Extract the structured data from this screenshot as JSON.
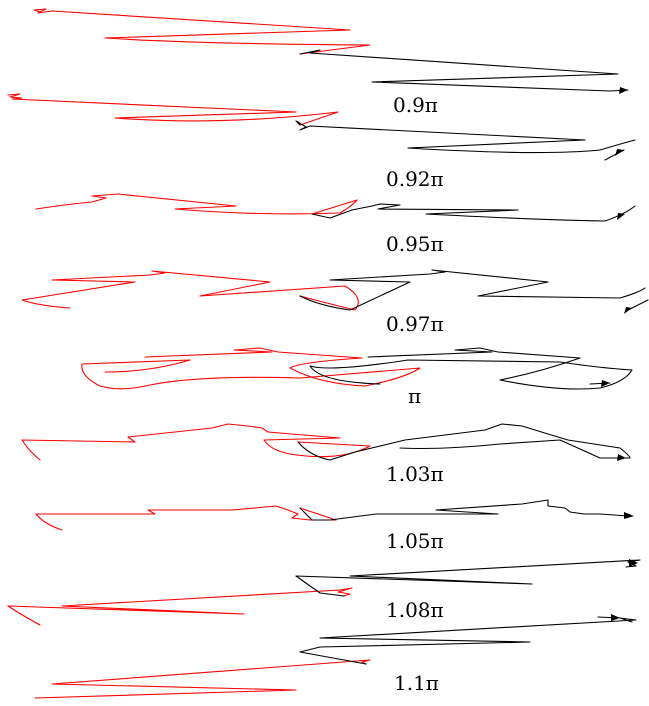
{
  "labels": [
    "0.9π",
    "0.92π",
    "0.95π",
    "0.97π",
    "π",
    "1.03π",
    "1.05π",
    "1.08π",
    "1.1π"
  ],
  "colors": {
    "first_half": "#ff0000",
    "second_half": "#000000"
  },
  "rows": [
    {
      "label": "0.9π"
    },
    {
      "label": "0.92π"
    },
    {
      "label": "0.95π"
    },
    {
      "label": "0.97π"
    },
    {
      "label": "π"
    },
    {
      "label": "1.03π"
    },
    {
      "label": "1.05π"
    },
    {
      "label": "1.08π"
    },
    {
      "label": "1.1π"
    }
  ]
}
